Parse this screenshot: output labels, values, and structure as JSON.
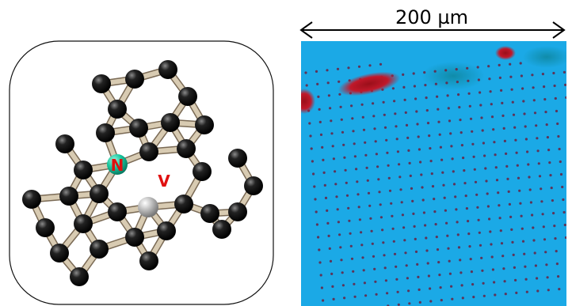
{
  "lattice": {
    "atom_labels": [
      "N",
      "V"
    ]
  },
  "image": {
    "scale_bar": "200 µm"
  }
}
